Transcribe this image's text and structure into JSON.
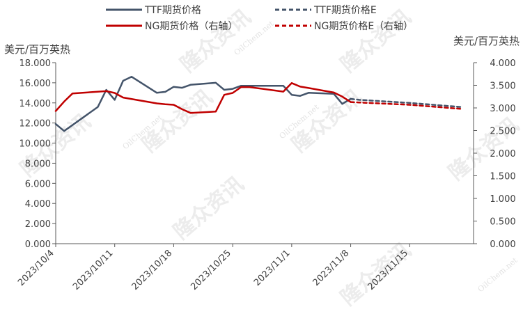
{
  "chart_data": {
    "type": "line",
    "title": "",
    "left_axis_unit": "美元/百万英热",
    "right_axis_unit": "美元/百万英热",
    "ylim_left": [
      0,
      18
    ],
    "ylim_right": [
      0,
      4
    ],
    "y_ticks_left": [
      "0.000",
      "2.000",
      "4.000",
      "6.000",
      "8.000",
      "10.000",
      "12.000",
      "14.000",
      "16.000",
      "18.000"
    ],
    "y_ticks_right": [
      "0.000",
      "0.500",
      "1.000",
      "1.500",
      "2.000",
      "2.500",
      "3.000",
      "3.500",
      "4.000"
    ],
    "x_ticks": [
      "2023/10/4",
      "2023/10/11",
      "2023/10/18",
      "2023/10/25",
      "2023/11/1",
      "2023/11/8",
      "2023/11/15"
    ],
    "xlim": [
      "2023/10/4",
      "2023/11/22"
    ],
    "legend_position": "top",
    "watermark": "隆众资讯",
    "watermark_small": "OilChem.net",
    "series": [
      {
        "name": "TTF期货价格",
        "axis": "left",
        "style": "solid",
        "color": "#44546a",
        "points": [
          [
            "2023/10/4",
            11.9
          ],
          [
            "2023/10/5",
            11.2
          ],
          [
            "2023/10/9",
            13.6
          ],
          [
            "2023/10/10",
            15.3
          ],
          [
            "2023/10/11",
            14.3
          ],
          [
            "2023/10/12",
            16.2
          ],
          [
            "2023/10/13",
            16.6
          ],
          [
            "2023/10/16",
            15.0
          ],
          [
            "2023/10/17",
            15.1
          ],
          [
            "2023/10/18",
            15.6
          ],
          [
            "2023/10/19",
            15.5
          ],
          [
            "2023/10/20",
            15.8
          ],
          [
            "2023/10/23",
            16.0
          ],
          [
            "2023/10/24",
            15.3
          ],
          [
            "2023/10/25",
            15.4
          ],
          [
            "2023/10/26",
            15.7
          ],
          [
            "2023/10/31",
            15.7
          ],
          [
            "2023/11/1",
            14.8
          ],
          [
            "2023/11/2",
            14.7
          ],
          [
            "2023/11/3",
            15.0
          ],
          [
            "2023/11/6",
            14.9
          ],
          [
            "2023/11/7",
            13.9
          ],
          [
            "2023/11/8",
            14.4
          ]
        ]
      },
      {
        "name": "TTF期货价格E",
        "axis": "left",
        "style": "dashed",
        "color": "#44546a",
        "points": [
          [
            "2023/11/8",
            14.4
          ],
          [
            "2023/11/9",
            14.3
          ],
          [
            "2023/11/15",
            14.0
          ],
          [
            "2023/11/21",
            13.6
          ]
        ]
      },
      {
        "name": "NG期货价格（右轴）",
        "axis": "right",
        "style": "solid",
        "color": "#c00000",
        "points": [
          [
            "2023/10/4",
            2.93
          ],
          [
            "2023/10/5",
            3.14
          ],
          [
            "2023/10/6",
            3.32
          ],
          [
            "2023/10/10",
            3.37
          ],
          [
            "2023/10/11",
            3.33
          ],
          [
            "2023/10/12",
            3.23
          ],
          [
            "2023/10/16",
            3.1
          ],
          [
            "2023/10/17",
            3.08
          ],
          [
            "2023/10/18",
            3.07
          ],
          [
            "2023/10/19",
            2.97
          ],
          [
            "2023/10/20",
            2.89
          ],
          [
            "2023/10/23",
            2.92
          ],
          [
            "2023/10/24",
            3.29
          ],
          [
            "2023/10/25",
            3.33
          ],
          [
            "2023/10/26",
            3.46
          ],
          [
            "2023/10/27",
            3.46
          ],
          [
            "2023/10/31",
            3.36
          ],
          [
            "2023/11/1",
            3.55
          ],
          [
            "2023/11/2",
            3.47
          ],
          [
            "2023/11/3",
            3.44
          ],
          [
            "2023/11/6",
            3.34
          ],
          [
            "2023/11/7",
            3.25
          ],
          [
            "2023/11/8",
            3.13
          ]
        ]
      },
      {
        "name": "NG期货价格E（右轴）",
        "axis": "right",
        "style": "dashed",
        "color": "#c00000",
        "points": [
          [
            "2023/11/8",
            3.13
          ],
          [
            "2023/11/9",
            3.12
          ],
          [
            "2023/11/15",
            3.07
          ],
          [
            "2023/11/21",
            2.98
          ]
        ]
      }
    ]
  }
}
